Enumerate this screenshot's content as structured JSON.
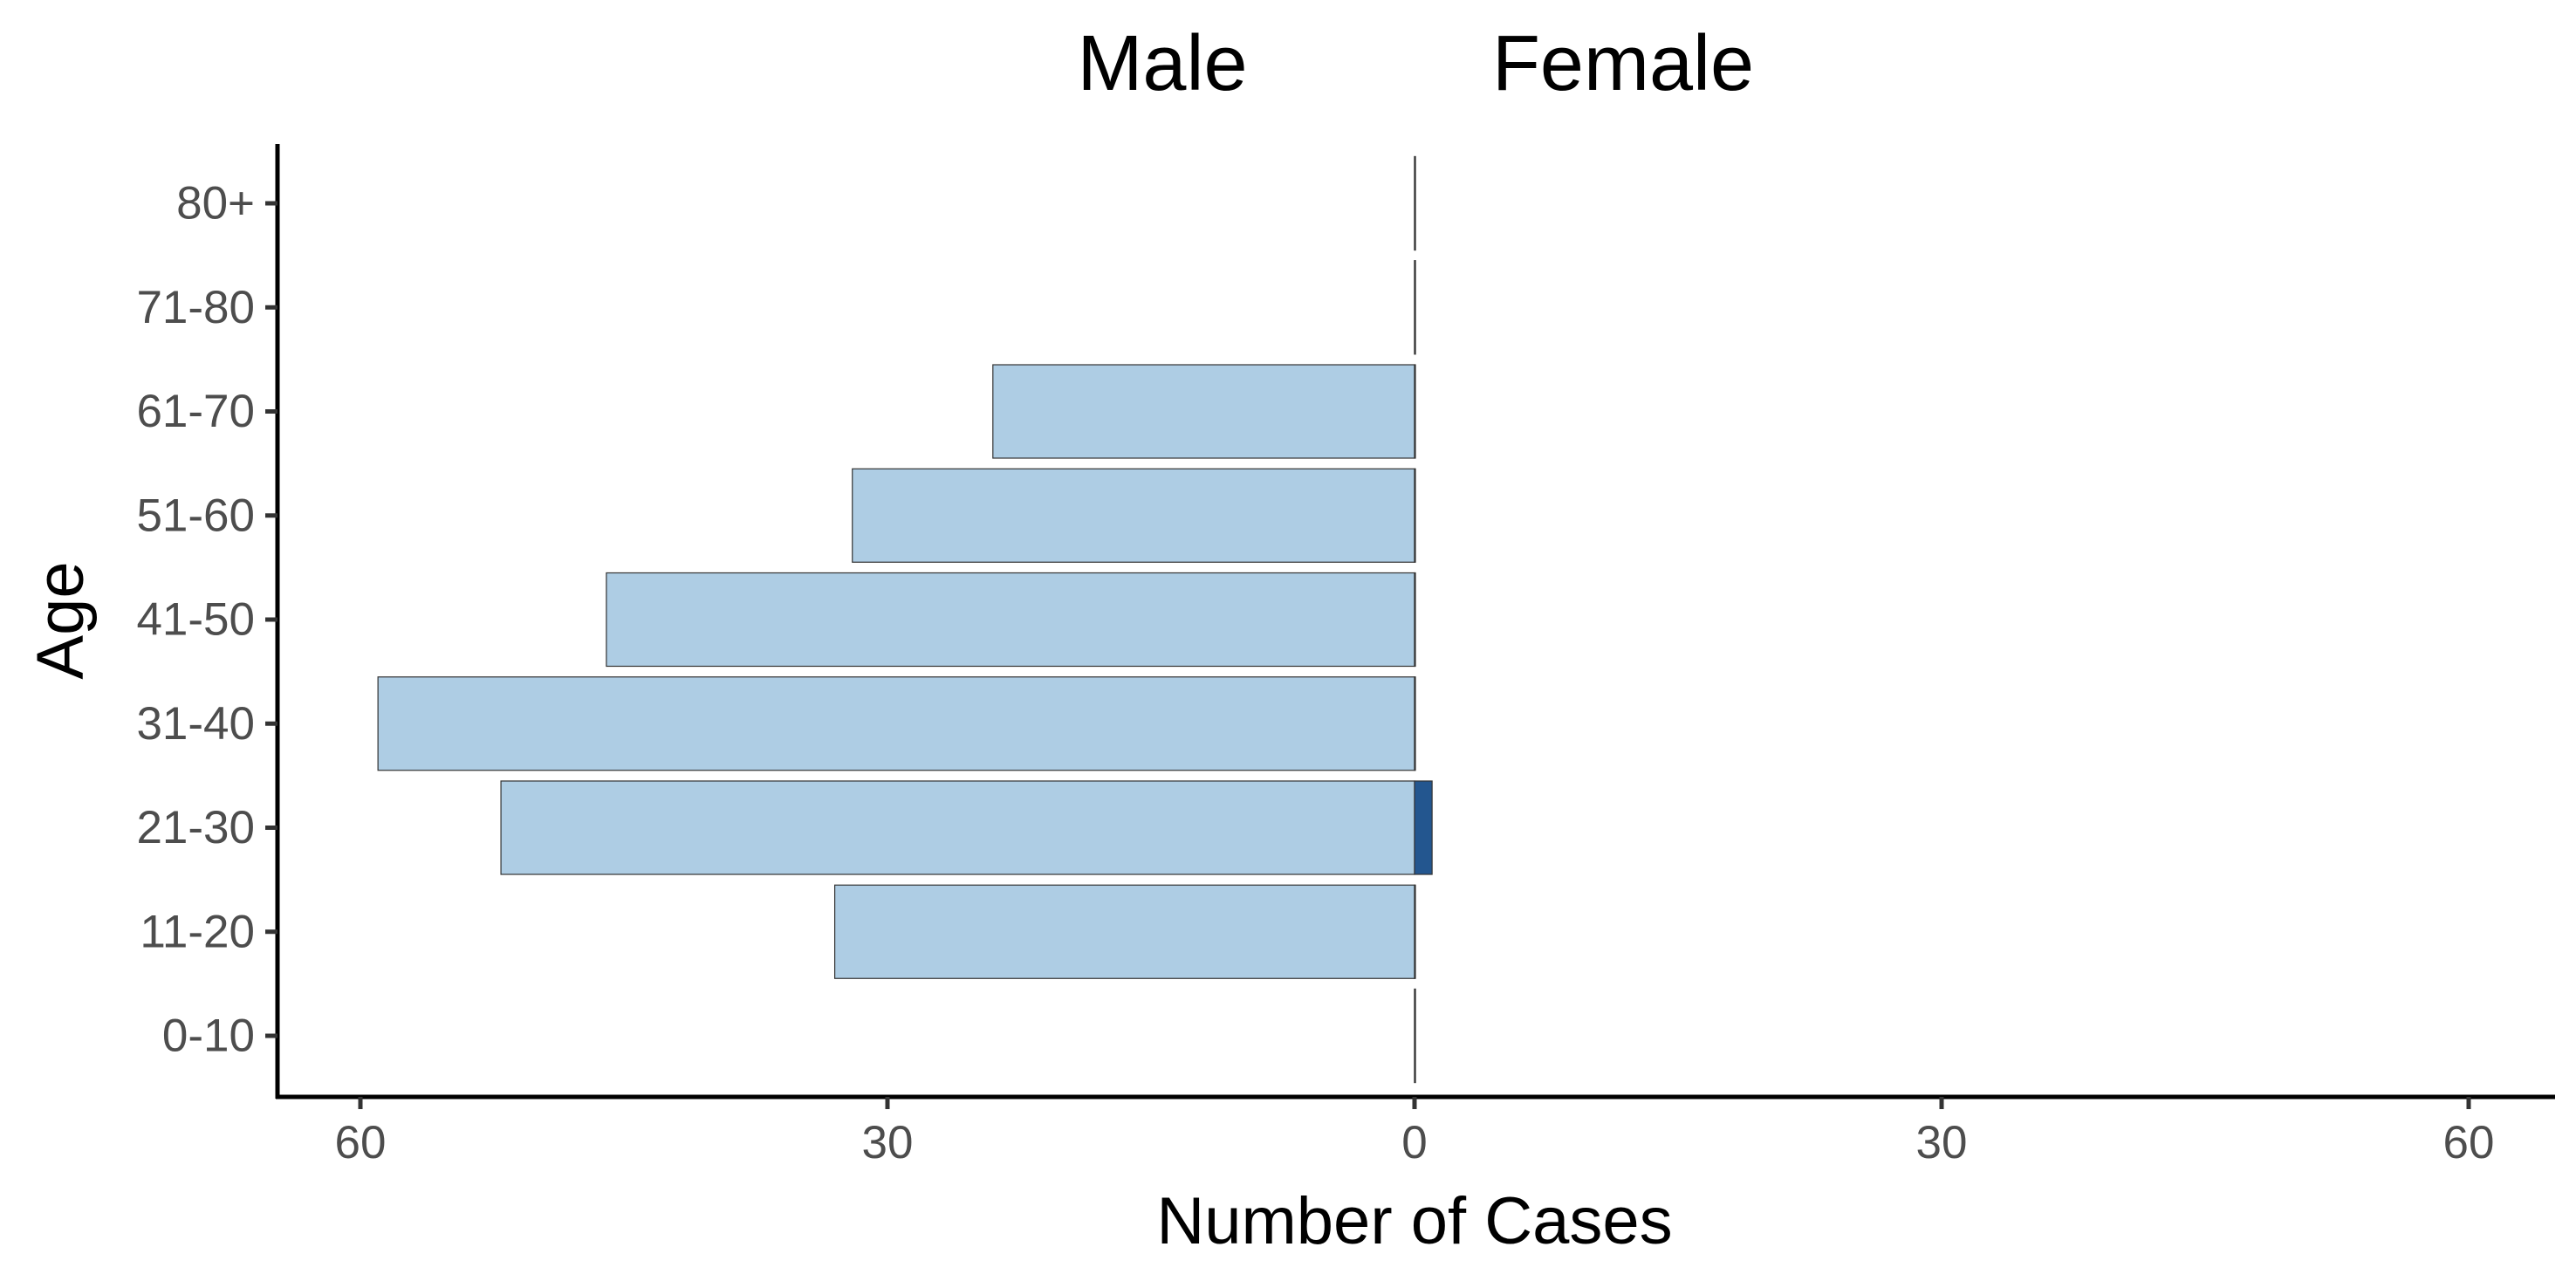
{
  "chart_data": {
    "type": "bar",
    "orientation": "horizontal",
    "layout": "population-pyramid",
    "group_labels": [
      "Male",
      "Female"
    ],
    "xlabel": "Number of Cases",
    "ylabel": "Age",
    "categories": [
      "0-10",
      "11-20",
      "21-30",
      "31-40",
      "41-50",
      "51-60",
      "61-70",
      "71-80",
      "80+"
    ],
    "x_ticks": [
      -60,
      -30,
      0,
      30,
      60
    ],
    "x_tick_labels": [
      "60",
      "30",
      "0",
      "30",
      "60"
    ],
    "xlim": [
      -60,
      60
    ],
    "series": [
      {
        "group": "Male",
        "values": [
          0,
          33,
          52,
          59,
          46,
          32,
          24,
          0,
          0
        ],
        "color": "#aecde4"
      },
      {
        "group": "Female",
        "values": [
          0,
          0,
          1,
          0,
          0,
          0,
          0,
          0,
          0
        ],
        "color": "#23568f"
      }
    ],
    "grid": false,
    "legend": "none",
    "bar_outline": "#333333"
  }
}
